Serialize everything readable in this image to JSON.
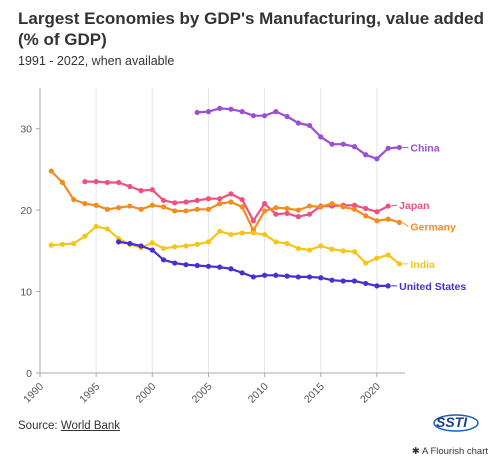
{
  "title": "Largest Economies by GDP's Manufacturing, value added (% of GDP)",
  "subtitle": "1991 - 2022, when available",
  "source": {
    "prefix": "Source: ",
    "link": "World Bank"
  },
  "logo_text": "SSTI",
  "flourish_label": "A Flourish chart",
  "chart_data": {
    "type": "line",
    "xlim": [
      1990,
      2022.5
    ],
    "ylim": [
      0,
      35
    ],
    "x_ticks": [
      "1990",
      "1995",
      "2000",
      "2005",
      "2010",
      "2015",
      "2020"
    ],
    "y_ticks": [
      "0",
      "10",
      "20",
      "30"
    ],
    "grid": "vertical",
    "series": [
      {
        "name": "China",
        "color": "#9b4fd6",
        "x": [
          2004,
          2005,
          2006,
          2007,
          2008,
          2009,
          2010,
          2011,
          2012,
          2013,
          2014,
          2015,
          2016,
          2017,
          2018,
          2019,
          2020,
          2021,
          2022
        ],
        "y": [
          32.0,
          32.1,
          32.5,
          32.4,
          32.1,
          31.6,
          31.6,
          32.1,
          31.5,
          30.7,
          30.4,
          29.0,
          28.1,
          28.1,
          27.8,
          26.8,
          26.3,
          27.6,
          27.7
        ]
      },
      {
        "name": "Japan",
        "color": "#f0507f",
        "x": [
          1994,
          1995,
          1996,
          1997,
          1998,
          1999,
          2000,
          2001,
          2002,
          2003,
          2004,
          2005,
          2006,
          2007,
          2008,
          2009,
          2010,
          2011,
          2012,
          2013,
          2014,
          2015,
          2016,
          2017,
          2018,
          2019,
          2020,
          2021
        ],
        "y": [
          23.5,
          23.5,
          23.4,
          23.4,
          22.9,
          22.4,
          22.5,
          21.2,
          20.9,
          21.0,
          21.2,
          21.4,
          21.4,
          22.0,
          21.3,
          18.7,
          20.8,
          19.5,
          19.6,
          19.2,
          19.5,
          20.5,
          20.5,
          20.6,
          20.6,
          20.2,
          19.8,
          20.5
        ]
      },
      {
        "name": "Germany",
        "color": "#f28c1e",
        "x": [
          1991,
          1992,
          1993,
          1994,
          1995,
          1996,
          1997,
          1998,
          1999,
          2000,
          2001,
          2002,
          2003,
          2004,
          2005,
          2006,
          2007,
          2008,
          2009,
          2010,
          2011,
          2012,
          2013,
          2014,
          2015,
          2016,
          2017,
          2018,
          2019,
          2020,
          2021,
          2022
        ],
        "y": [
          24.8,
          23.4,
          21.3,
          20.8,
          20.6,
          20.1,
          20.3,
          20.5,
          20.1,
          20.6,
          20.4,
          19.9,
          19.9,
          20.1,
          20.1,
          20.8,
          21.0,
          20.4,
          17.5,
          19.9,
          20.3,
          20.2,
          20.0,
          20.5,
          20.4,
          20.8,
          20.4,
          20.1,
          19.3,
          18.7,
          18.9,
          18.5
        ]
      },
      {
        "name": "India",
        "color": "#f5c518",
        "x": [
          1991,
          1992,
          1993,
          1994,
          1995,
          1996,
          1997,
          1998,
          1999,
          2000,
          2001,
          2002,
          2003,
          2004,
          2005,
          2006,
          2007,
          2008,
          2009,
          2010,
          2011,
          2012,
          2013,
          2014,
          2015,
          2016,
          2017,
          2018,
          2019,
          2020,
          2021,
          2022
        ],
        "y": [
          15.7,
          15.8,
          15.9,
          16.8,
          18.0,
          17.7,
          16.5,
          15.8,
          15.4,
          16.0,
          15.3,
          15.5,
          15.6,
          15.8,
          16.1,
          17.4,
          17.0,
          17.2,
          17.2,
          17.0,
          16.1,
          15.9,
          15.3,
          15.1,
          15.6,
          15.2,
          15.0,
          14.9,
          13.5,
          14.1,
          14.5,
          13.4
        ]
      },
      {
        "name": "United States",
        "color": "#4a2fcf",
        "x": [
          1997,
          1998,
          1999,
          2000,
          2001,
          2002,
          2003,
          2004,
          2005,
          2006,
          2007,
          2008,
          2009,
          2010,
          2011,
          2012,
          2013,
          2014,
          2015,
          2016,
          2017,
          2018,
          2019,
          2020,
          2021
        ],
        "y": [
          16.1,
          15.9,
          15.6,
          15.1,
          13.9,
          13.5,
          13.3,
          13.2,
          13.1,
          13.0,
          12.8,
          12.3,
          11.8,
          12.0,
          12.0,
          11.9,
          11.8,
          11.8,
          11.7,
          11.4,
          11.3,
          11.3,
          11.0,
          10.7,
          10.7
        ]
      }
    ]
  }
}
